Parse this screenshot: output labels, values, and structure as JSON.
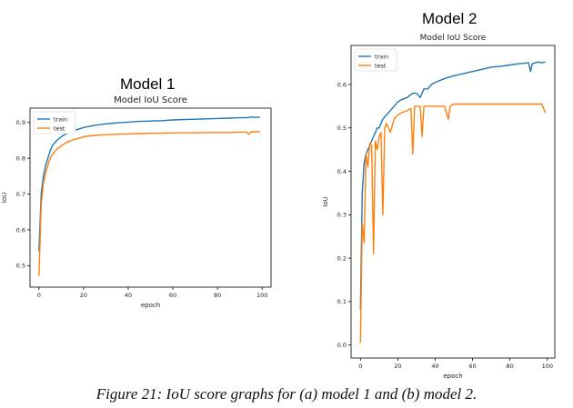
{
  "figure": {
    "caption": "Figure 21: IoU score graphs for (a) model 1 and (b) model 2.",
    "colors": {
      "train": "#1f77b4",
      "test": "#ff7f0e",
      "axis": "#000000",
      "background": "#ffffff"
    }
  },
  "chart_data": [
    {
      "type": "line",
      "suptitle": "Model 1",
      "title": "Model IoU Score",
      "xlabel": "epoch",
      "ylabel": "IoU",
      "xlim": [
        -4,
        104
      ],
      "ylim": [
        0.44,
        0.94
      ],
      "xticks": [
        0,
        20,
        40,
        60,
        80,
        100
      ],
      "yticks": [
        0.5,
        0.6,
        0.7,
        0.8,
        0.9
      ],
      "ytick_labels": [
        "0.5",
        "0.6",
        "0.7",
        "0.8",
        "0.9"
      ],
      "grid": false,
      "legend": "upper-left",
      "series": [
        {
          "name": "train",
          "x": [
            0,
            1,
            2,
            3,
            4,
            5,
            6,
            8,
            10,
            12,
            15,
            18,
            20,
            25,
            30,
            35,
            40,
            45,
            50,
            55,
            60,
            65,
            70,
            75,
            80,
            85,
            90,
            93,
            95,
            97,
            99
          ],
          "values": [
            0.54,
            0.7,
            0.75,
            0.78,
            0.8,
            0.82,
            0.835,
            0.85,
            0.86,
            0.868,
            0.876,
            0.882,
            0.886,
            0.892,
            0.896,
            0.899,
            0.901,
            0.903,
            0.904,
            0.905,
            0.907,
            0.908,
            0.909,
            0.91,
            0.911,
            0.912,
            0.913,
            0.913,
            0.915,
            0.914,
            0.915
          ]
        },
        {
          "name": "test",
          "x": [
            0,
            1,
            2,
            3,
            4,
            5,
            6,
            8,
            10,
            12,
            15,
            18,
            20,
            25,
            30,
            35,
            40,
            45,
            50,
            55,
            60,
            65,
            70,
            75,
            80,
            85,
            90,
            93,
            94,
            95,
            97,
            99
          ],
          "values": [
            0.47,
            0.67,
            0.73,
            0.76,
            0.78,
            0.8,
            0.81,
            0.825,
            0.835,
            0.843,
            0.851,
            0.856,
            0.86,
            0.864,
            0.866,
            0.867,
            0.868,
            0.869,
            0.87,
            0.87,
            0.871,
            0.871,
            0.871,
            0.872,
            0.872,
            0.872,
            0.873,
            0.873,
            0.867,
            0.874,
            0.874,
            0.874
          ]
        }
      ]
    },
    {
      "type": "line",
      "suptitle": "Model 2",
      "title": "Model IoU Score",
      "xlabel": "epoch",
      "ylabel": "IoU",
      "xlim": [
        -5,
        104
      ],
      "ylim": [
        -0.03,
        0.69
      ],
      "xticks": [
        0,
        20,
        40,
        60,
        80,
        100
      ],
      "yticks": [
        0.0,
        0.1,
        0.2,
        0.3,
        0.4,
        0.5,
        0.6
      ],
      "ytick_labels": [
        "0.0",
        "0.1",
        "0.2",
        "0.3",
        "0.4",
        "0.5",
        "0.6"
      ],
      "grid": false,
      "legend": "upper-left",
      "series": [
        {
          "name": "train",
          "x": [
            0,
            1,
            2,
            3,
            4,
            5,
            6,
            7,
            8,
            9,
            10,
            12,
            14,
            16,
            18,
            20,
            22,
            25,
            28,
            30,
            32,
            34,
            36,
            38,
            40,
            43,
            46,
            50,
            55,
            60,
            65,
            70,
            75,
            80,
            85,
            88,
            90,
            91,
            92,
            95,
            97,
            99
          ],
          "values": [
            0.08,
            0.35,
            0.42,
            0.44,
            0.45,
            0.46,
            0.47,
            0.48,
            0.49,
            0.5,
            0.5,
            0.52,
            0.53,
            0.54,
            0.55,
            0.56,
            0.565,
            0.57,
            0.58,
            0.58,
            0.57,
            0.59,
            0.59,
            0.6,
            0.605,
            0.61,
            0.615,
            0.62,
            0.625,
            0.63,
            0.635,
            0.64,
            0.642,
            0.645,
            0.648,
            0.649,
            0.65,
            0.63,
            0.648,
            0.652,
            0.65,
            0.652
          ]
        },
        {
          "name": "test",
          "x": [
            0,
            1,
            2,
            3,
            4,
            5,
            6,
            7,
            8,
            9,
            10,
            11,
            12,
            13,
            14,
            16,
            18,
            20,
            22,
            25,
            27,
            28,
            29,
            30,
            32,
            33,
            34,
            36,
            40,
            45,
            47,
            48,
            50,
            55,
            60,
            65,
            70,
            75,
            80,
            85,
            90,
            95,
            97,
            99
          ],
          "values": [
            0.005,
            0.28,
            0.235,
            0.44,
            0.41,
            0.465,
            0.46,
            0.21,
            0.47,
            0.45,
            0.48,
            0.49,
            0.3,
            0.5,
            0.51,
            0.49,
            0.52,
            0.53,
            0.535,
            0.54,
            0.545,
            0.44,
            0.55,
            0.55,
            0.55,
            0.48,
            0.55,
            0.55,
            0.55,
            0.55,
            0.52,
            0.55,
            0.555,
            0.555,
            0.555,
            0.555,
            0.555,
            0.555,
            0.555,
            0.555,
            0.555,
            0.555,
            0.555,
            0.535
          ]
        }
      ]
    }
  ]
}
